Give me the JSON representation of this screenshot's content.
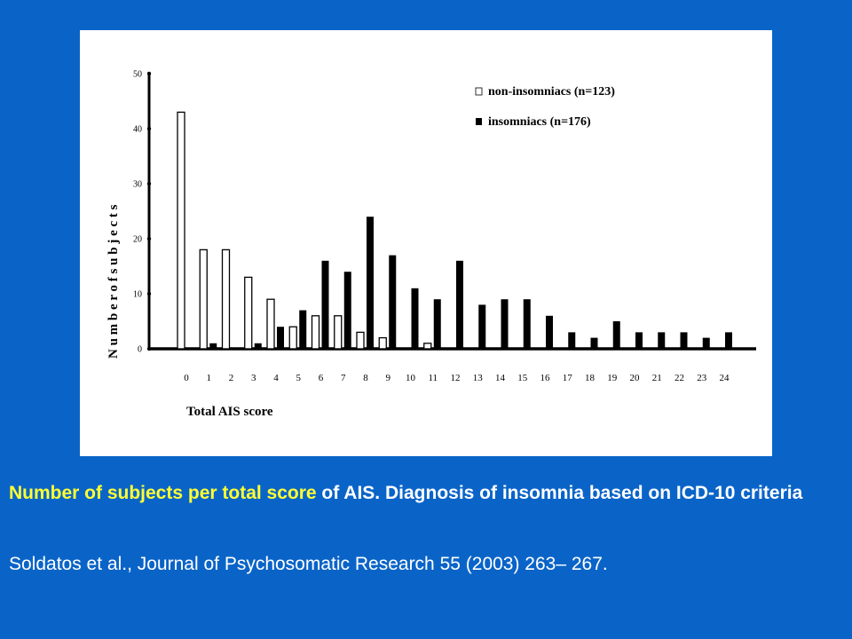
{
  "chart_data": {
    "type": "bar",
    "title": "",
    "xlabel": "Total AIS score",
    "ylabel": "N u m b e r   o f   s u b j e c t s",
    "ylim": [
      0,
      50
    ],
    "yticks": [
      0,
      10,
      20,
      30,
      40,
      50
    ],
    "grid": false,
    "legend_position": "top-right",
    "categories": [
      "0",
      "1",
      "2",
      "3",
      "4",
      "5",
      "6",
      "7",
      "8",
      "9",
      "10",
      "11",
      "12",
      "13",
      "14",
      "15",
      "16",
      "17",
      "18",
      "19",
      "20",
      "21",
      "22",
      "23",
      "24"
    ],
    "series": [
      {
        "name": "non-insomniacs (n=123)",
        "color": "#ffffff",
        "values": [
          43,
          18,
          18,
          13,
          9,
          4,
          6,
          6,
          3,
          2,
          0,
          1,
          0,
          0,
          0,
          0,
          0,
          0,
          0,
          0,
          0,
          0,
          0,
          0,
          0
        ]
      },
      {
        "name": "insomniacs (n=176)",
        "color": "#000000",
        "values": [
          0,
          1,
          0,
          1,
          4,
          7,
          16,
          14,
          24,
          17,
          11,
          9,
          16,
          8,
          9,
          9,
          6,
          3,
          2,
          5,
          3,
          3,
          3,
          2,
          3
        ]
      }
    ]
  },
  "caption": {
    "highlight": "Number of subjects per total score",
    "rest": " of AIS. Diagnosis of insomnia based on ICD-10 criteria"
  },
  "citation": "Soldatos et al., Journal of Psychosomatic Research 55 (2003) 263– 267."
}
